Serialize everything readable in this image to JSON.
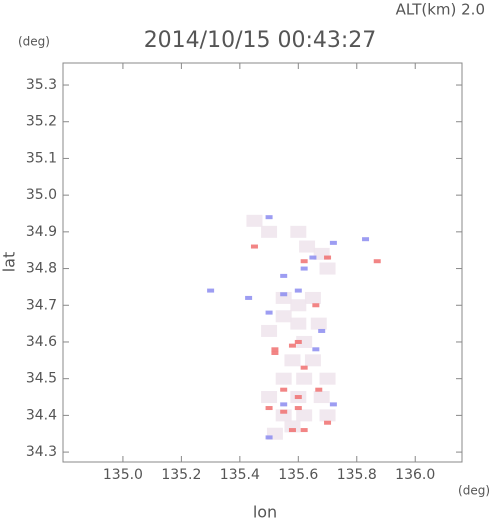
{
  "chart_data": {
    "type": "scatter",
    "title": "2014/10/15 00:43:27",
    "altitude_label": "ALT(km) 2.0",
    "y_unit": "(deg)",
    "x_unit": "(deg)",
    "ylabel": "lat",
    "xlabel": "lon",
    "xlim": [
      134.795,
      136.16
    ],
    "ylim": [
      34.273,
      35.36
    ],
    "xticks": [
      {
        "value": 135.0,
        "label": "135.0"
      },
      135.2,
      135.4,
      135.6,
      135.8,
      {
        "value": 136.0,
        "label": "136.0"
      }
    ],
    "yticks": [
      34.3,
      34.4,
      34.5,
      34.6,
      34.7,
      34.8,
      34.9,
      {
        "value": 35.0,
        "label": "35.0"
      },
      35.1,
      35.2,
      35.3
    ],
    "grid": false,
    "series": [
      {
        "color": "#eee4ec",
        "x": [
          135.45,
          135.5,
          135.6,
          135.63,
          135.68,
          135.7,
          135.55,
          135.6,
          135.65,
          135.55,
          135.6,
          135.67,
          135.5,
          135.62,
          135.58,
          135.65,
          135.55,
          135.62,
          135.7,
          135.5,
          135.6,
          135.68,
          135.55,
          135.62,
          135.7,
          135.58,
          135.52
        ],
        "y": [
          34.93,
          34.9,
          34.9,
          34.86,
          34.84,
          34.8,
          34.72,
          34.7,
          34.72,
          34.67,
          34.65,
          34.65,
          34.63,
          34.6,
          34.55,
          34.55,
          34.5,
          34.5,
          34.5,
          34.45,
          34.45,
          34.45,
          34.4,
          34.4,
          34.4,
          34.37,
          34.35
        ]
      },
      {
        "color": "#f07070",
        "x": [
          135.62,
          135.7,
          135.87,
          135.58,
          135.52,
          135.6,
          135.62,
          135.6,
          135.67,
          135.55,
          135.5,
          135.55,
          135.6,
          135.58,
          135.62,
          135.7,
          135.52,
          135.66,
          135.45
        ],
        "y": [
          34.82,
          34.83,
          34.82,
          34.59,
          34.58,
          34.6,
          34.53,
          34.45,
          34.47,
          34.47,
          34.42,
          34.41,
          34.42,
          34.36,
          34.36,
          34.38,
          34.57,
          34.7,
          34.86
        ]
      },
      {
        "color": "#8c8cf0",
        "x": [
          135.3,
          135.43,
          135.72,
          135.65,
          135.62,
          135.55,
          135.5,
          135.55,
          135.6,
          135.68,
          135.66,
          135.5,
          135.55,
          135.72,
          135.83,
          135.5
        ],
        "y": [
          34.74,
          34.72,
          34.87,
          34.83,
          34.8,
          34.78,
          34.68,
          34.73,
          34.74,
          34.63,
          34.58,
          34.34,
          34.43,
          34.43,
          34.88,
          34.94
        ]
      }
    ]
  }
}
